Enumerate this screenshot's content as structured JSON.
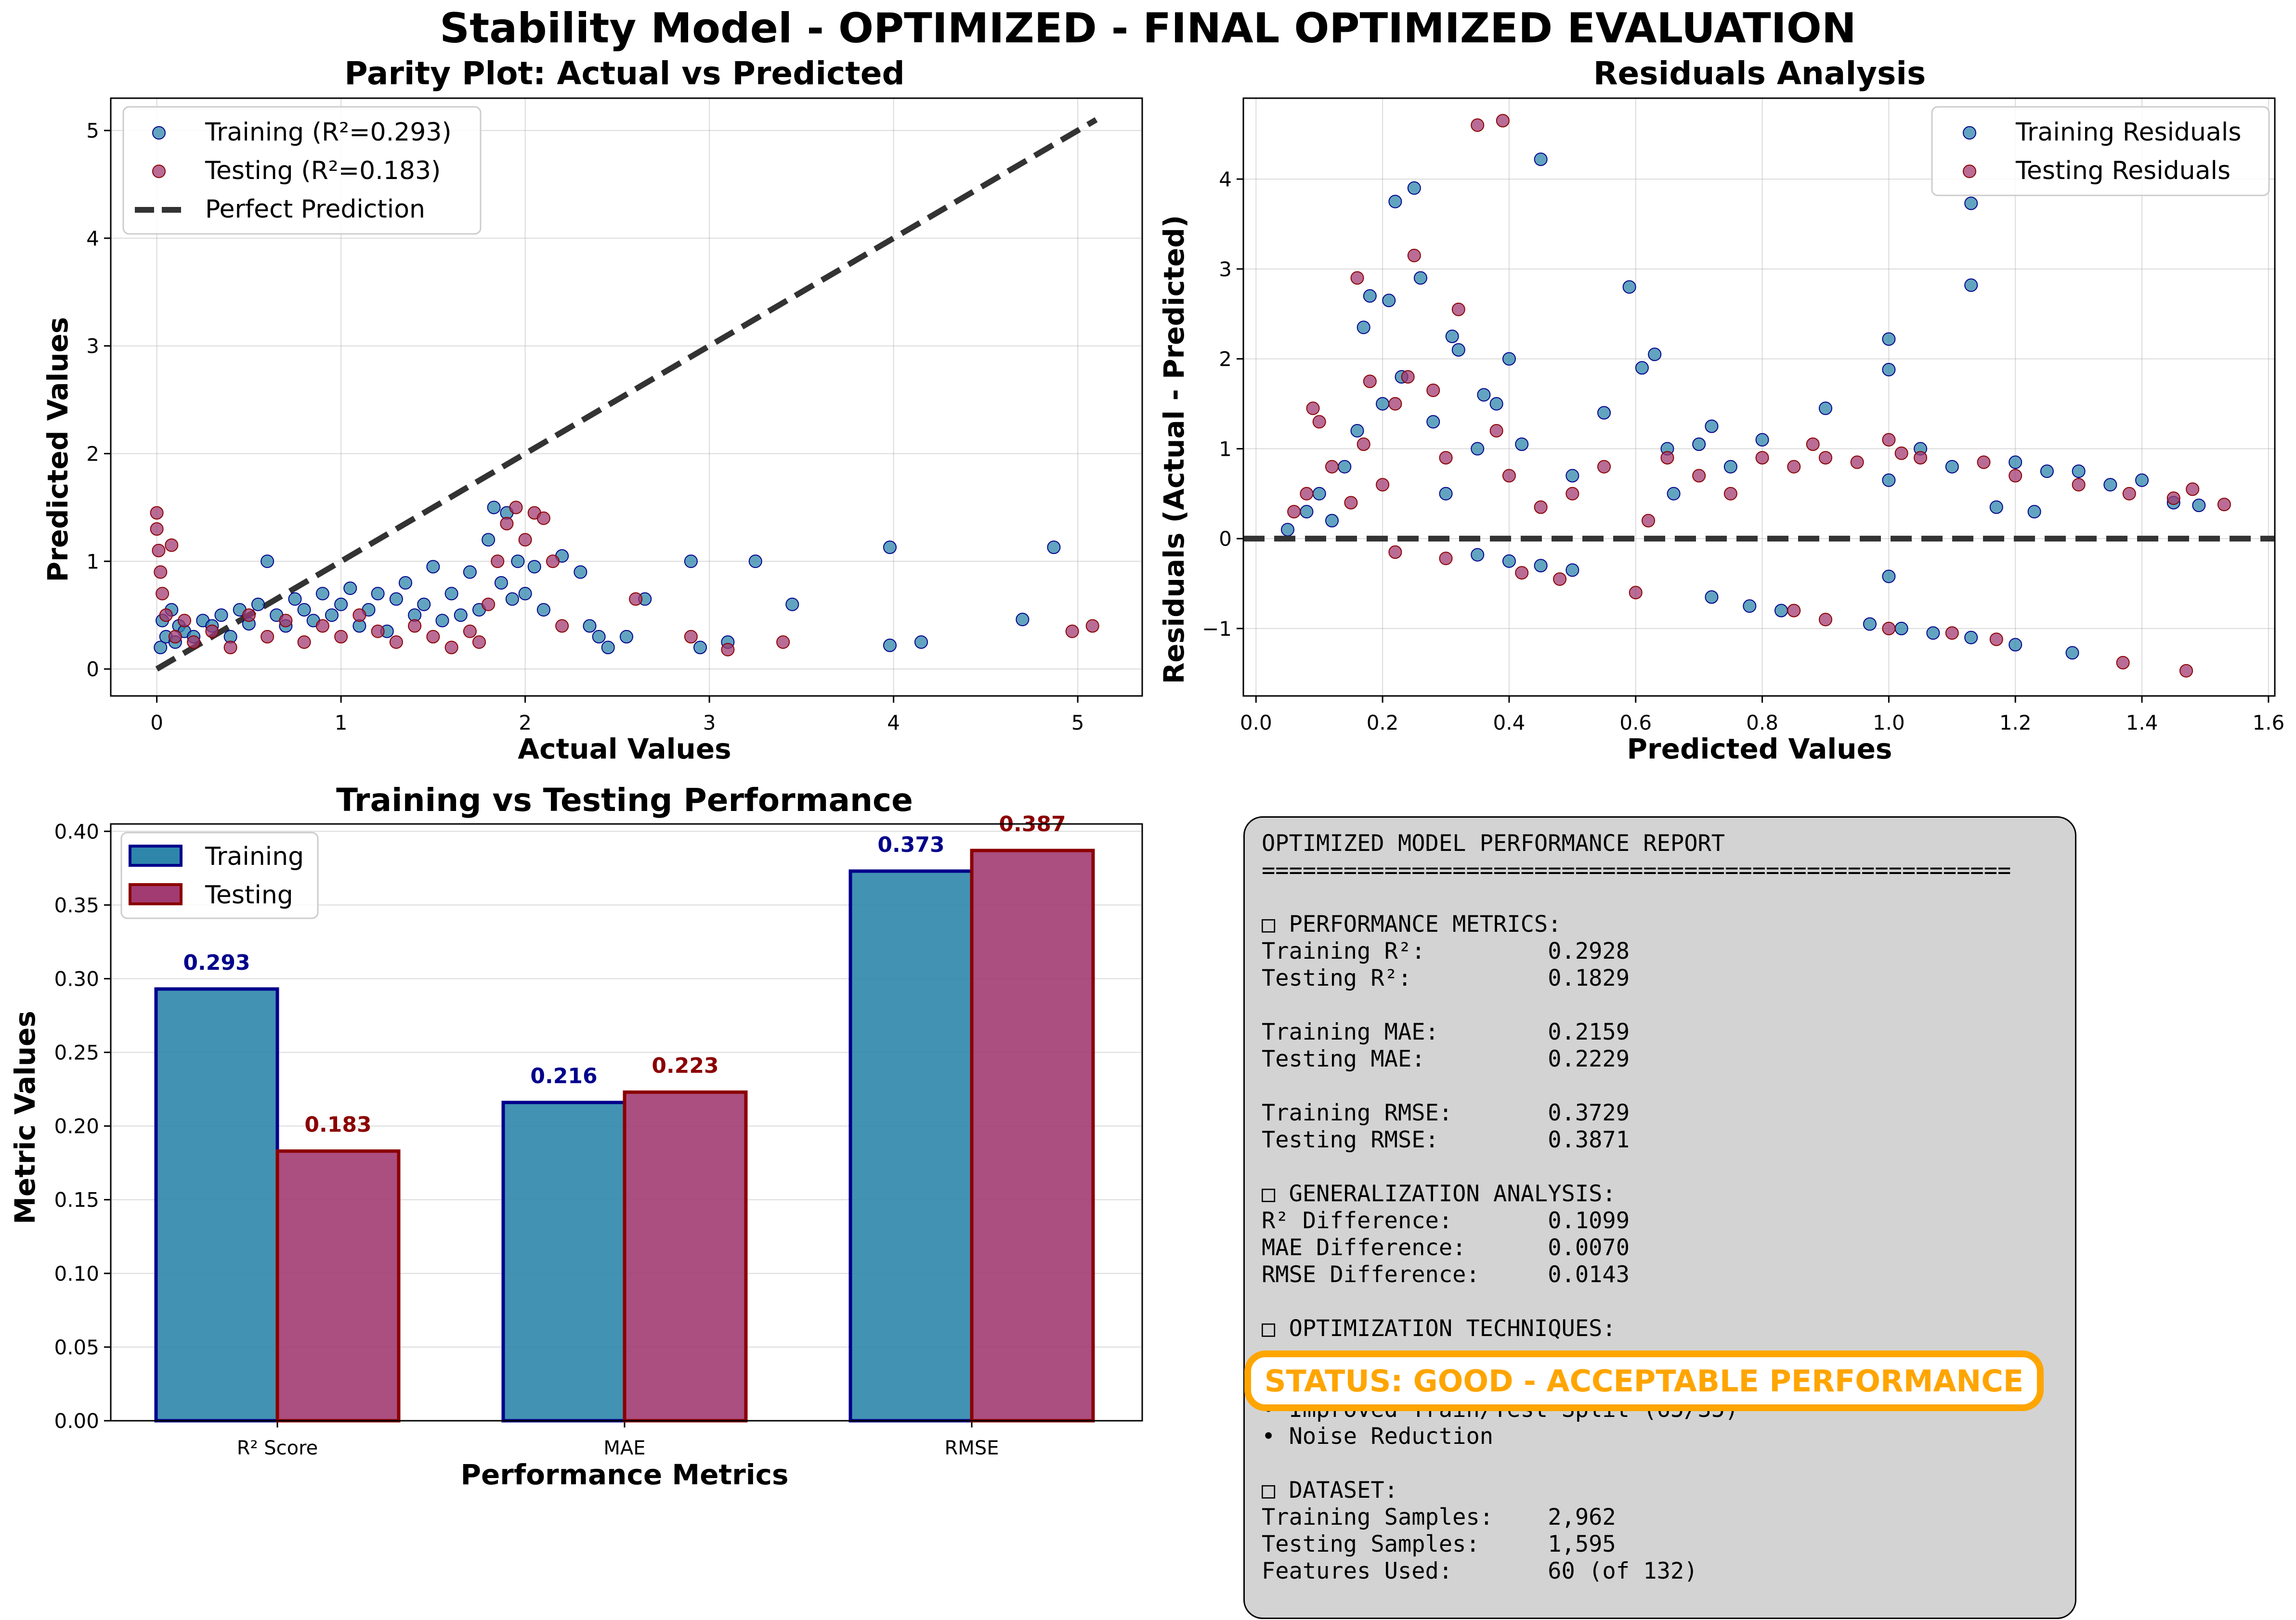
{
  "suptitle": "Stability Model - OPTIMIZED - FINAL OPTIMIZED EVALUATION",
  "colors": {
    "training": "#2E86AB",
    "testing": "#A23B72",
    "train_edge": "#00008B",
    "test_edge": "#8B0000",
    "reference": "#333333",
    "status": "#FFA500",
    "report_bg": "#D3D3D3"
  },
  "chart_data": [
    {
      "type": "scatter",
      "title": "Parity Plot: Actual vs Predicted",
      "xlabel": "Actual Values",
      "ylabel": "Predicted Values",
      "xlim": [
        -0.25,
        5.35
      ],
      "ylim": [
        -0.25,
        5.3
      ],
      "xticks": [
        0,
        1,
        2,
        3,
        4,
        5
      ],
      "yticks": [
        0,
        1,
        2,
        3,
        4,
        5
      ],
      "grid": true,
      "legend_position": "upper-left",
      "series": [
        {
          "name": "Training (R²=0.293)",
          "points": [
            [
              0.02,
              0.2
            ],
            [
              0.03,
              0.45
            ],
            [
              0.05,
              0.3
            ],
            [
              0.08,
              0.55
            ],
            [
              0.1,
              0.25
            ],
            [
              0.12,
              0.4
            ],
            [
              0.15,
              0.35
            ],
            [
              0.2,
              0.3
            ],
            [
              0.25,
              0.45
            ],
            [
              0.3,
              0.4
            ],
            [
              0.35,
              0.5
            ],
            [
              0.4,
              0.3
            ],
            [
              0.45,
              0.55
            ],
            [
              0.5,
              0.42
            ],
            [
              0.55,
              0.6
            ],
            [
              0.6,
              1.0
            ],
            [
              0.65,
              0.5
            ],
            [
              0.7,
              0.4
            ],
            [
              0.75,
              0.65
            ],
            [
              0.8,
              0.55
            ],
            [
              0.85,
              0.45
            ],
            [
              0.9,
              0.7
            ],
            [
              0.95,
              0.5
            ],
            [
              1.0,
              0.6
            ],
            [
              1.05,
              0.75
            ],
            [
              1.1,
              0.4
            ],
            [
              1.15,
              0.55
            ],
            [
              1.2,
              0.7
            ],
            [
              1.25,
              0.35
            ],
            [
              1.3,
              0.65
            ],
            [
              1.35,
              0.8
            ],
            [
              1.4,
              0.5
            ],
            [
              1.45,
              0.6
            ],
            [
              1.5,
              0.95
            ],
            [
              1.55,
              0.45
            ],
            [
              1.6,
              0.7
            ],
            [
              1.65,
              0.5
            ],
            [
              1.7,
              0.9
            ],
            [
              1.75,
              0.55
            ],
            [
              1.8,
              1.2
            ],
            [
              1.83,
              1.5
            ],
            [
              1.87,
              0.8
            ],
            [
              1.9,
              1.45
            ],
            [
              1.93,
              0.65
            ],
            [
              1.96,
              1.0
            ],
            [
              2.0,
              0.7
            ],
            [
              2.05,
              0.95
            ],
            [
              2.1,
              0.55
            ],
            [
              2.2,
              1.05
            ],
            [
              2.3,
              0.9
            ],
            [
              2.35,
              0.4
            ],
            [
              2.4,
              0.3
            ],
            [
              2.45,
              0.2
            ],
            [
              2.55,
              0.3
            ],
            [
              2.65,
              0.65
            ],
            [
              2.9,
              1.0
            ],
            [
              2.95,
              0.2
            ],
            [
              3.1,
              0.25
            ],
            [
              3.25,
              1.0
            ],
            [
              3.45,
              0.6
            ],
            [
              3.98,
              1.13
            ],
            [
              3.98,
              0.22
            ],
            [
              4.15,
              0.25
            ],
            [
              4.7,
              0.46
            ],
            [
              4.87,
              1.13
            ]
          ]
        },
        {
          "name": "Testing (R²=0.183)",
          "points": [
            [
              0.0,
              1.45
            ],
            [
              0.0,
              1.3
            ],
            [
              0.01,
              1.1
            ],
            [
              0.02,
              0.9
            ],
            [
              0.03,
              0.7
            ],
            [
              0.05,
              0.5
            ],
            [
              0.08,
              1.15
            ],
            [
              0.1,
              0.3
            ],
            [
              0.15,
              0.45
            ],
            [
              0.2,
              0.25
            ],
            [
              0.3,
              0.35
            ],
            [
              0.4,
              0.2
            ],
            [
              0.5,
              0.5
            ],
            [
              0.6,
              0.3
            ],
            [
              0.7,
              0.45
            ],
            [
              0.8,
              0.25
            ],
            [
              0.9,
              0.4
            ],
            [
              1.0,
              0.3
            ],
            [
              1.1,
              0.5
            ],
            [
              1.2,
              0.35
            ],
            [
              1.3,
              0.25
            ],
            [
              1.4,
              0.4
            ],
            [
              1.5,
              0.3
            ],
            [
              1.6,
              0.2
            ],
            [
              1.7,
              0.35
            ],
            [
              1.75,
              0.25
            ],
            [
              1.8,
              0.6
            ],
            [
              1.85,
              1.0
            ],
            [
              1.9,
              1.35
            ],
            [
              1.95,
              1.5
            ],
            [
              2.0,
              1.2
            ],
            [
              2.05,
              1.45
            ],
            [
              2.1,
              1.4
            ],
            [
              2.15,
              1.0
            ],
            [
              2.2,
              0.4
            ],
            [
              2.6,
              0.65
            ],
            [
              2.9,
              0.3
            ],
            [
              3.1,
              0.18
            ],
            [
              3.4,
              0.25
            ],
            [
              4.97,
              0.35
            ],
            [
              5.08,
              0.4
            ]
          ]
        }
      ],
      "reference": {
        "name": "Perfect Prediction",
        "points": [
          [
            0.0,
            0.0
          ],
          [
            5.1,
            5.1
          ]
        ]
      }
    },
    {
      "type": "scatter",
      "title": "Residuals Analysis",
      "xlabel": "Predicted Values",
      "ylabel": "Residuals (Actual - Predicted)",
      "xlim": [
        -0.02,
        1.61
      ],
      "ylim": [
        -1.75,
        4.9
      ],
      "xticks": [
        0.0,
        0.2,
        0.4,
        0.6,
        0.8,
        1.0,
        1.2,
        1.4,
        1.6
      ],
      "yticks": [
        -1,
        0,
        1,
        2,
        3,
        4
      ],
      "grid": true,
      "legend_position": "upper-right",
      "series": [
        {
          "name": "Training Residuals",
          "points": [
            [
              0.05,
              0.1
            ],
            [
              0.08,
              0.3
            ],
            [
              0.1,
              0.5
            ],
            [
              0.12,
              0.2
            ],
            [
              0.14,
              0.8
            ],
            [
              0.16,
              1.2
            ],
            [
              0.17,
              2.35
            ],
            [
              0.18,
              2.7
            ],
            [
              0.2,
              1.5
            ],
            [
              0.21,
              2.65
            ],
            [
              0.22,
              3.75
            ],
            [
              0.23,
              1.8
            ],
            [
              0.25,
              3.9
            ],
            [
              0.26,
              2.9
            ],
            [
              0.28,
              1.3
            ],
            [
              0.3,
              0.5
            ],
            [
              0.31,
              2.25
            ],
            [
              0.32,
              2.1
            ],
            [
              0.35,
              1.0
            ],
            [
              0.36,
              1.6
            ],
            [
              0.38,
              1.5
            ],
            [
              0.4,
              2.0
            ],
            [
              0.42,
              1.05
            ],
            [
              0.45,
              4.22
            ],
            [
              0.5,
              0.7
            ],
            [
              0.55,
              1.4
            ],
            [
              0.59,
              2.8
            ],
            [
              0.61,
              1.9
            ],
            [
              0.63,
              2.05
            ],
            [
              0.65,
              1.0
            ],
            [
              0.66,
              0.5
            ],
            [
              0.7,
              1.05
            ],
            [
              0.72,
              1.25
            ],
            [
              0.75,
              0.8
            ],
            [
              0.8,
              1.1
            ],
            [
              0.9,
              1.45
            ],
            [
              1.0,
              2.22
            ],
            [
              1.0,
              1.88
            ],
            [
              1.0,
              0.65
            ],
            [
              1.0,
              -0.42
            ],
            [
              1.05,
              1.0
            ],
            [
              1.1,
              0.8
            ],
            [
              1.13,
              3.73
            ],
            [
              1.13,
              2.82
            ],
            [
              1.17,
              0.35
            ],
            [
              1.2,
              0.85
            ],
            [
              1.23,
              0.3
            ],
            [
              1.25,
              0.75
            ],
            [
              1.3,
              0.75
            ],
            [
              1.35,
              0.6
            ],
            [
              1.4,
              0.65
            ],
            [
              1.45,
              0.4
            ],
            [
              1.49,
              0.37
            ],
            [
              0.72,
              -0.65
            ],
            [
              0.78,
              -0.75
            ],
            [
              0.83,
              -0.8
            ],
            [
              0.97,
              -0.95
            ],
            [
              1.02,
              -1.0
            ],
            [
              1.07,
              -1.05
            ],
            [
              1.13,
              -1.1
            ],
            [
              1.2,
              -1.18
            ],
            [
              1.29,
              -1.27
            ],
            [
              0.5,
              -0.35
            ],
            [
              0.45,
              -0.3
            ],
            [
              0.4,
              -0.25
            ],
            [
              0.35,
              -0.18
            ]
          ]
        },
        {
          "name": "Testing Residuals",
          "points": [
            [
              0.06,
              0.3
            ],
            [
              0.08,
              0.5
            ],
            [
              0.09,
              1.45
            ],
            [
              0.1,
              1.3
            ],
            [
              0.12,
              0.8
            ],
            [
              0.15,
              0.4
            ],
            [
              0.16,
              2.9
            ],
            [
              0.17,
              1.05
            ],
            [
              0.18,
              1.75
            ],
            [
              0.2,
              0.6
            ],
            [
              0.22,
              1.5
            ],
            [
              0.24,
              1.8
            ],
            [
              0.25,
              3.15
            ],
            [
              0.28,
              1.65
            ],
            [
              0.3,
              0.9
            ],
            [
              0.32,
              2.55
            ],
            [
              0.35,
              4.6
            ],
            [
              0.39,
              4.65
            ],
            [
              0.38,
              1.2
            ],
            [
              0.4,
              0.7
            ],
            [
              0.45,
              0.35
            ],
            [
              0.5,
              0.5
            ],
            [
              0.55,
              0.8
            ],
            [
              0.6,
              -0.6
            ],
            [
              0.62,
              0.2
            ],
            [
              0.65,
              0.9
            ],
            [
              0.7,
              0.7
            ],
            [
              0.75,
              0.5
            ],
            [
              0.8,
              0.9
            ],
            [
              0.85,
              0.8
            ],
            [
              0.88,
              1.05
            ],
            [
              0.9,
              0.9
            ],
            [
              0.95,
              0.85
            ],
            [
              1.0,
              1.1
            ],
            [
              1.02,
              0.95
            ],
            [
              1.05,
              0.9
            ],
            [
              1.15,
              0.85
            ],
            [
              1.2,
              0.7
            ],
            [
              1.3,
              0.6
            ],
            [
              1.38,
              0.5
            ],
            [
              1.45,
              0.45
            ],
            [
              1.48,
              0.55
            ],
            [
              1.53,
              0.38
            ],
            [
              0.85,
              -0.8
            ],
            [
              0.9,
              -0.9
            ],
            [
              1.0,
              -1.0
            ],
            [
              1.1,
              -1.05
            ],
            [
              1.17,
              -1.12
            ],
            [
              1.37,
              -1.38
            ],
            [
              1.47,
              -1.47
            ],
            [
              0.48,
              -0.45
            ],
            [
              0.42,
              -0.38
            ],
            [
              0.3,
              -0.22
            ],
            [
              0.22,
              -0.15
            ]
          ]
        }
      ],
      "reference": {
        "y": 0
      }
    },
    {
      "type": "bar",
      "title": "Training vs Testing Performance",
      "xlabel": "Performance Metrics",
      "ylabel": "Metric Values",
      "categories": [
        "R² Score",
        "MAE",
        "RMSE"
      ],
      "ylim": [
        0.0,
        0.405
      ],
      "yticks": [
        "0.00",
        "0.05",
        "0.10",
        "0.15",
        "0.20",
        "0.25",
        "0.30",
        "0.35",
        "0.40"
      ],
      "grid": true,
      "legend_position": "upper-left",
      "series": [
        {
          "name": "Training",
          "values": [
            0.293,
            0.216,
            0.373
          ],
          "labels": [
            "0.293",
            "0.216",
            "0.373"
          ]
        },
        {
          "name": "Testing",
          "values": [
            0.183,
            0.223,
            0.387
          ],
          "labels": [
            "0.183",
            "0.223",
            "0.387"
          ]
        }
      ]
    }
  ],
  "report": {
    "lines": [
      "OPTIMIZED MODEL PERFORMANCE REPORT",
      "=======================================================",
      "",
      "□ PERFORMANCE METRICS:",
      "Training R²:         0.2928",
      "Testing R²:          0.1829",
      "",
      "Training MAE:        0.2159",
      "Testing MAE:         0.2229",
      "",
      "Training RMSE:       0.3729",
      "Testing RMSE:        0.3871",
      "",
      "□ GENERALIZATION ANALYSIS:",
      "R² Difference:       0.1099",
      "MAE Difference:      0.0070",
      "RMSE Difference:     0.0143",
      "",
      "□ OPTIMIZATION TECHNIQUES:",
      "",
      "",
      "• Improved Train/Test Split (65/35)",
      "• Noise Reduction",
      "",
      "□ DATASET:",
      "Training Samples:    2,962",
      "Testing Samples:     1,595",
      "Features Used:       60 (of 132)"
    ],
    "status": "STATUS: GOOD - ACCEPTABLE PERFORMANCE"
  }
}
